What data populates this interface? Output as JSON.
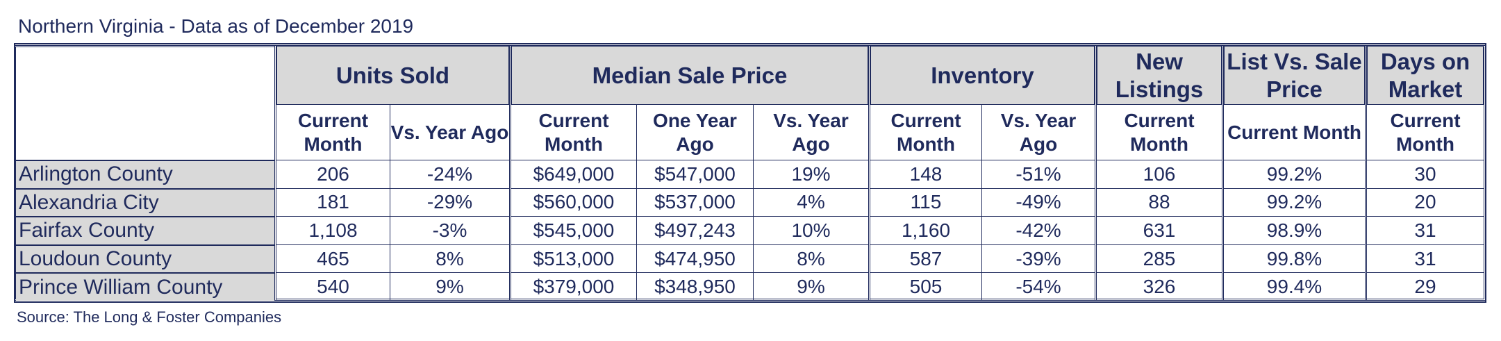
{
  "title": "Northern Virginia - Data as of December 2019",
  "source": "Source: The Long & Foster Companies",
  "groups": [
    {
      "label": "Units Sold",
      "subs": [
        "Current Month",
        "Vs. Year Ago"
      ]
    },
    {
      "label": "Median Sale Price",
      "subs": [
        "Current Month",
        "One Year Ago",
        "Vs. Year Ago"
      ]
    },
    {
      "label": "Inventory",
      "subs": [
        "Current Month",
        "Vs. Year Ago"
      ]
    },
    {
      "label": "New Listings",
      "subs": [
        "Current Month"
      ]
    },
    {
      "label": "List Vs. Sale Price",
      "subs": [
        "Current Month"
      ]
    },
    {
      "label": "Days on Market",
      "subs": [
        "Current Month"
      ]
    }
  ],
  "rows": [
    {
      "name": "Arlington County",
      "values": [
        "206",
        "-24%",
        "$649,000",
        "$547,000",
        "19%",
        "148",
        "-51%",
        "106",
        "99.2%",
        "30"
      ]
    },
    {
      "name": "Alexandria City",
      "values": [
        "181",
        "-29%",
        "$560,000",
        "$537,000",
        "4%",
        "115",
        "-49%",
        "88",
        "99.2%",
        "20"
      ]
    },
    {
      "name": "Fairfax County",
      "values": [
        "1,108",
        "-3%",
        "$545,000",
        "$497,243",
        "10%",
        "1,160",
        "-42%",
        "631",
        "98.9%",
        "31"
      ]
    },
    {
      "name": "Loudoun County",
      "values": [
        "465",
        "8%",
        "$513,000",
        "$474,950",
        "8%",
        "587",
        "-39%",
        "285",
        "99.8%",
        "31"
      ]
    },
    {
      "name": "Prince William County",
      "values": [
        "540",
        "9%",
        "$379,000",
        "$348,950",
        "9%",
        "505",
        "-54%",
        "326",
        "99.4%",
        "29"
      ]
    }
  ]
}
